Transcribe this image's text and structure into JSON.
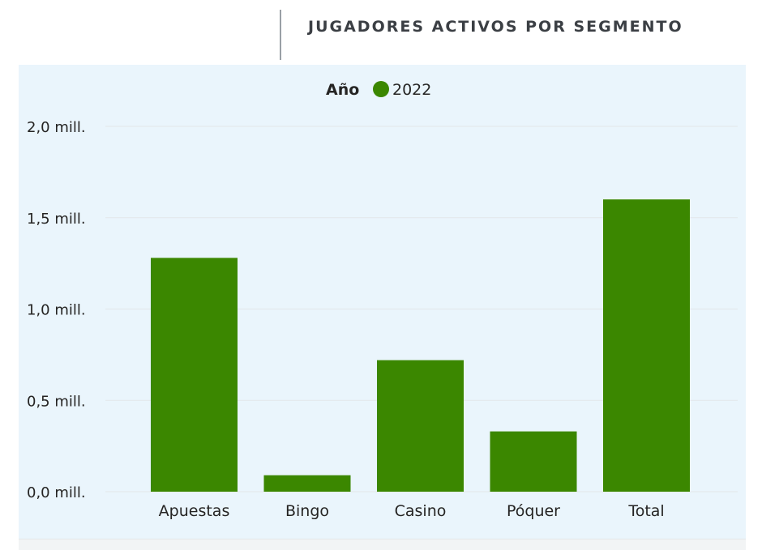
{
  "title": "JUGADORES ACTIVOS POR SEGMENTO",
  "legend": {
    "title": "Año",
    "entries": [
      {
        "label": "2022",
        "color": "#3b8700"
      }
    ]
  },
  "chart_data": {
    "type": "bar",
    "categories": [
      "Apuestas",
      "Bingo",
      "Casino",
      "Póquer",
      "Total"
    ],
    "series": [
      {
        "name": "2022",
        "values": [
          1280000,
          90000,
          720000,
          330000,
          1600000
        ],
        "color": "#3b8700"
      }
    ],
    "ylim": [
      0,
      2000000
    ],
    "yticks": [
      0,
      500000,
      1000000,
      1500000,
      2000000
    ],
    "ytick_labels": [
      "0,0 mill.",
      "0,5 mill.",
      "1,0 mill.",
      "1,5 mill.",
      "2,0 mill."
    ],
    "grid": true,
    "legend_position": "top-center"
  }
}
